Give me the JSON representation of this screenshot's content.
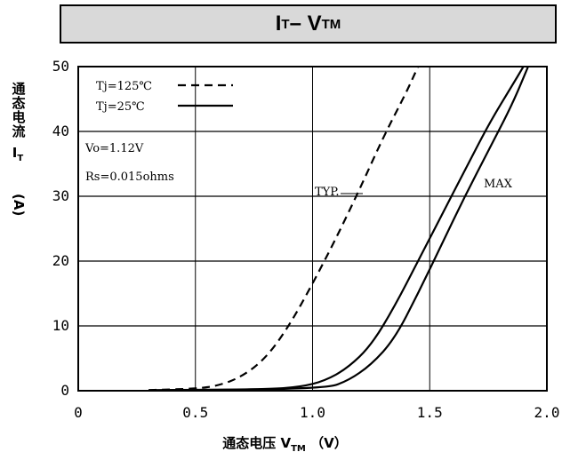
{
  "header": {
    "title_main": "I",
    "title_sub1": "T",
    "title_dash": " – V",
    "title_sub2": "TM"
  },
  "y_axis": {
    "label_chars": "通态电流",
    "symbol": "I",
    "symbol_sub": "T",
    "unit": "(A)"
  },
  "x_axis": {
    "label_text": "通态电压 V",
    "label_sub": "TM",
    "unit": "（V）"
  },
  "legend": [
    {
      "label": "Tj=125℃",
      "style": "dashed"
    },
    {
      "label": "Tj=25℃",
      "style": "solid"
    }
  ],
  "annotations": {
    "vo": "Vo=1.12V",
    "rs": "Rs=0.015ohms",
    "typ": "TYP.",
    "max": "MAX"
  },
  "chart_data": {
    "type": "line",
    "xlim": [
      0,
      2.0
    ],
    "ylim": [
      0,
      50
    ],
    "x_ticks": [
      "0",
      "0.5",
      "1.0",
      "1.5",
      "2.0"
    ],
    "y_ticks": [
      "0",
      "10",
      "20",
      "30",
      "40",
      "50"
    ],
    "grid": true,
    "series": [
      {
        "name": "Tj=125℃",
        "style": "dashed",
        "points": [
          [
            0.3,
            0.1
          ],
          [
            0.5,
            0.3
          ],
          [
            0.6,
            0.8
          ],
          [
            0.7,
            2.2
          ],
          [
            0.8,
            5
          ],
          [
            0.9,
            10
          ],
          [
            1.0,
            16.5
          ],
          [
            1.1,
            23.5
          ],
          [
            1.2,
            31
          ],
          [
            1.3,
            39
          ],
          [
            1.4,
            46
          ],
          [
            1.45,
            50
          ]
        ]
      },
      {
        "name": "Tj=25℃ TYP.",
        "style": "solid",
        "points": [
          [
            0.3,
            0.1
          ],
          [
            0.8,
            0.2
          ],
          [
            0.95,
            0.6
          ],
          [
            1.05,
            1.5
          ],
          [
            1.15,
            3.5
          ],
          [
            1.25,
            7
          ],
          [
            1.35,
            13
          ],
          [
            1.45,
            20
          ],
          [
            1.55,
            27
          ],
          [
            1.65,
            34
          ],
          [
            1.75,
            41
          ],
          [
            1.85,
            47
          ],
          [
            1.9,
            50
          ]
        ]
      },
      {
        "name": "Tj=25℃ MAX",
        "style": "solid",
        "points": [
          [
            0.3,
            0.05
          ],
          [
            1.05,
            0.3
          ],
          [
            1.15,
            1.5
          ],
          [
            1.25,
            4
          ],
          [
            1.35,
            8
          ],
          [
            1.45,
            15
          ],
          [
            1.55,
            22.5
          ],
          [
            1.65,
            30
          ],
          [
            1.75,
            37
          ],
          [
            1.85,
            44
          ],
          [
            1.92,
            50
          ]
        ]
      }
    ]
  }
}
